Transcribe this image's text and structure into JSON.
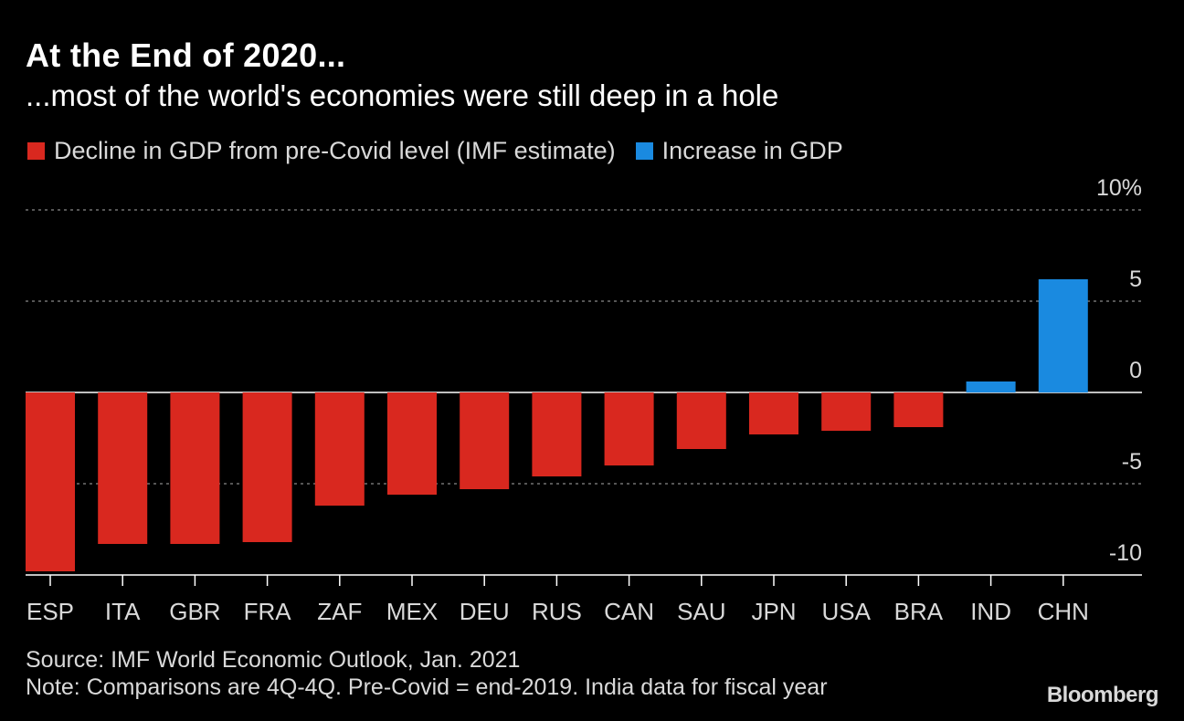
{
  "title": "At the End of 2020...",
  "subtitle": "...most of the world's economies were still deep in a hole",
  "legend": [
    {
      "label": "Decline in GDP from pre-Covid level (IMF estimate)",
      "color": "#d9281f"
    },
    {
      "label": "Increase in GDP",
      "color": "#1a8ae0"
    }
  ],
  "footer": {
    "source": "Source: IMF World Economic Outlook, Jan. 2021",
    "note": "Note: Comparisons are 4Q-4Q. Pre-Covid = end-2019. India data for fiscal year"
  },
  "brand": "Bloomberg",
  "chart_data": {
    "type": "bar",
    "categories": [
      "ESP",
      "ITA",
      "GBR",
      "FRA",
      "ZAF",
      "MEX",
      "DEU",
      "RUS",
      "CAN",
      "SAU",
      "JPN",
      "USA",
      "BRA",
      "IND",
      "CHN"
    ],
    "values": [
      -9.8,
      -8.3,
      -8.3,
      -8.2,
      -6.2,
      -5.6,
      -5.3,
      -4.6,
      -4.0,
      -3.1,
      -2.3,
      -2.1,
      -1.9,
      0.6,
      6.2
    ],
    "ylim": [
      -10,
      10
    ],
    "yticks": [
      10,
      5,
      0,
      -5,
      -10
    ],
    "ytick_labels": [
      "10%",
      "5",
      "0",
      "-5",
      "-10"
    ],
    "ylabel": "",
    "xlabel": "",
    "negative_color": "#d9281f",
    "positive_color": "#1a8ae0",
    "grid": true
  }
}
